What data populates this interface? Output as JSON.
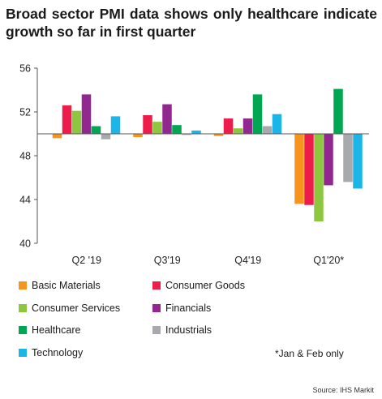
{
  "title": "Broad sector PMI data shows only healthcare indicate growth so far in first quarter",
  "note": "*Jan & Feb only",
  "source": "Source: IHS Markit",
  "chart_data": {
    "type": "bar",
    "categories": [
      "Q2 '19",
      "Q3'19",
      "Q4'19",
      "Q1'20*"
    ],
    "ylim": [
      40,
      56
    ],
    "yticks": [
      40,
      44,
      48,
      52,
      56
    ],
    "baseline": 50,
    "grid": false,
    "legend_position": "bottom",
    "series": [
      {
        "name": "Basic Materials",
        "color": "#f7941d",
        "values": [
          49.6,
          49.7,
          49.8,
          43.6
        ]
      },
      {
        "name": "Consumer Goods",
        "color": "#ec1c4b",
        "values": [
          52.6,
          51.7,
          51.4,
          43.5
        ]
      },
      {
        "name": "Consumer Services",
        "color": "#8dc63f",
        "values": [
          52.1,
          51.1,
          50.5,
          42.0
        ]
      },
      {
        "name": "Financials",
        "color": "#92278f",
        "values": [
          53.6,
          52.7,
          51.4,
          45.3
        ]
      },
      {
        "name": "Healthcare",
        "color": "#00a651",
        "values": [
          50.7,
          50.8,
          53.6,
          54.1
        ]
      },
      {
        "name": "Industrials",
        "color": "#a7a9ac",
        "values": [
          49.5,
          49.9,
          50.7,
          45.6
        ]
      },
      {
        "name": "Technology",
        "color": "#1cb5e8",
        "values": [
          51.6,
          50.3,
          51.8,
          45.0
        ]
      }
    ]
  }
}
